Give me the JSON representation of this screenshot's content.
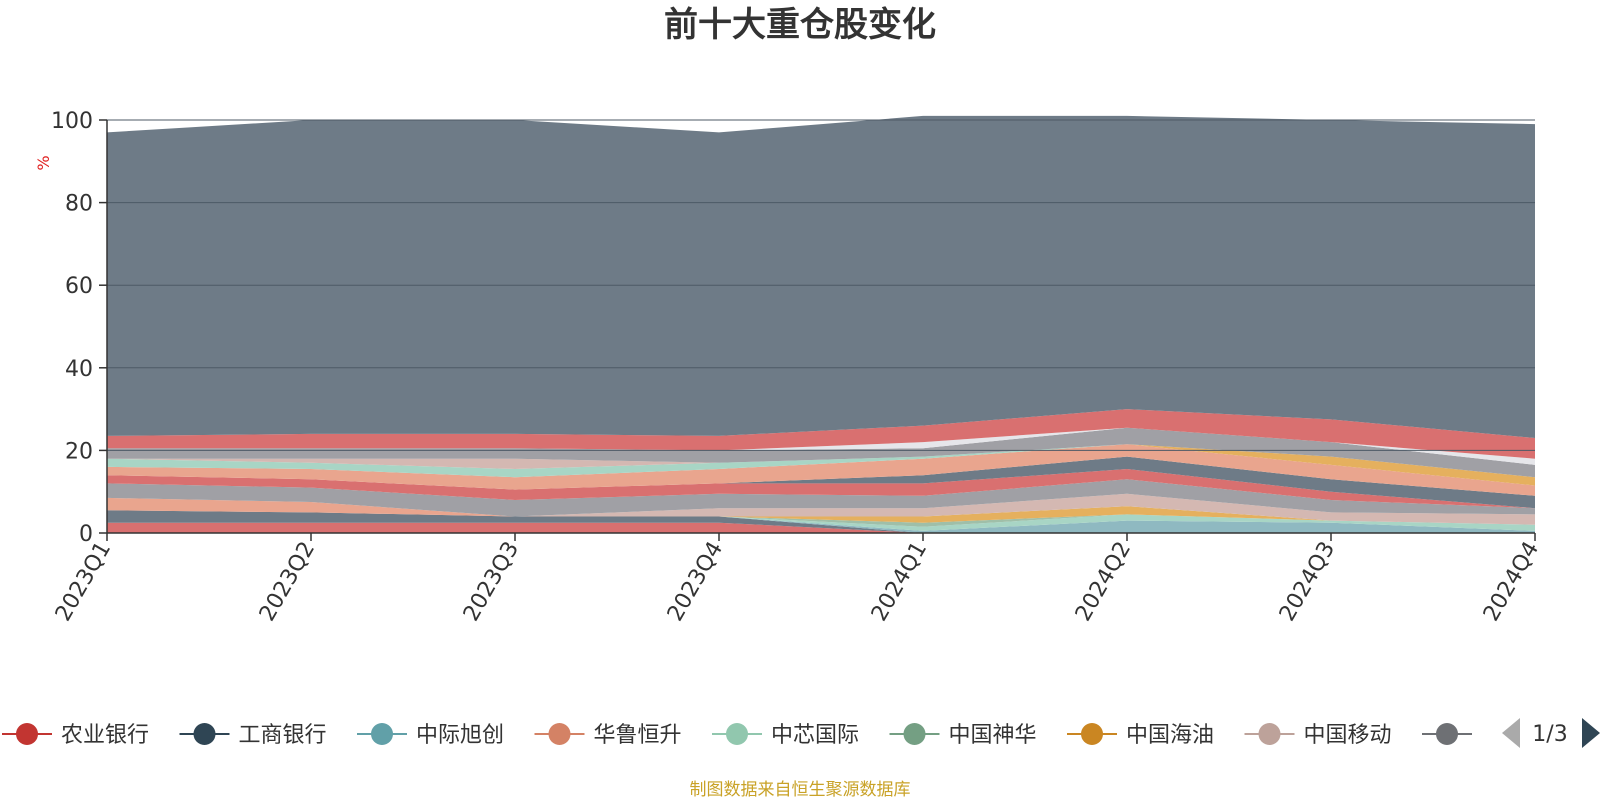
{
  "title": "前十大重仓股变化",
  "source_note": "制图数据来自恒生聚源数据库",
  "legend_page": "1/3",
  "chart_data": {
    "type": "area",
    "stacked": true,
    "title": "前十大重仓股变化",
    "ylabel": "%",
    "ylim": [
      0,
      100
    ],
    "yticks": [
      0,
      20,
      40,
      60,
      80,
      100
    ],
    "grid": true,
    "legend_position": "bottom",
    "categories": [
      "2023Q1",
      "2023Q2",
      "2023Q3",
      "2023Q4",
      "2024Q1",
      "2024Q2",
      "2024Q3",
      "2024Q4"
    ],
    "series": [
      {
        "name": "农业银行",
        "color": "#d97070",
        "values": [
          2.5,
          2.5,
          2.5,
          2.5,
          0,
          0,
          0,
          0
        ]
      },
      {
        "name": "工商银行",
        "color": "#6e7b87",
        "values": [
          3.0,
          2.5,
          1.5,
          1.5,
          0,
          0,
          0,
          0
        ]
      },
      {
        "name": "中际旭创",
        "color": "#8fb9c1",
        "values": [
          0,
          0,
          0,
          0,
          0.5,
          3.0,
          2.5,
          0.5
        ]
      },
      {
        "name": "华鲁恒升",
        "color": "#e9a58e",
        "values": [
          3.0,
          2.5,
          0,
          0,
          0,
          0,
          0,
          0
        ]
      },
      {
        "name": "中芯国际",
        "color": "#a8d5c5",
        "values": [
          0,
          0,
          0,
          0,
          1.0,
          1.5,
          0.5,
          1.5
        ]
      },
      {
        "name": "中国神华",
        "color": "#9fbfa9",
        "values": [
          0,
          0,
          0,
          0,
          1.0,
          0,
          0,
          0
        ]
      },
      {
        "name": "中国海油",
        "color": "#e5b05e",
        "values": [
          0,
          0,
          0,
          0,
          1.5,
          2.0,
          0,
          0
        ]
      },
      {
        "name": "中国移动",
        "color": "#d4b8b2",
        "values": [
          0,
          0,
          0,
          2.0,
          2.0,
          3.0,
          2.0,
          2.5
        ]
      },
      {
        "name": null,
        "color": "#a0a0a5",
        "values": [
          3.5,
          3.5,
          4.0,
          3.5,
          3.0,
          3.5,
          3.0,
          1.5
        ]
      },
      {
        "name": null,
        "color": "#d97070",
        "values": [
          2.0,
          2.0,
          2.5,
          2.5,
          3.0,
          2.5,
          2.0,
          0
        ]
      },
      {
        "name": null,
        "color": "#6e7b87",
        "values": [
          0,
          0,
          0,
          0,
          2.0,
          3.0,
          3.0,
          3.0
        ]
      },
      {
        "name": null,
        "color": "#e9a58e",
        "values": [
          2.0,
          2.5,
          3.0,
          3.5,
          4.0,
          3.0,
          3.5,
          2.5
        ]
      },
      {
        "name": null,
        "color": "#a8d5c5",
        "values": [
          2.0,
          1.5,
          2.0,
          1.5,
          0.5,
          0,
          0,
          0
        ]
      },
      {
        "name": null,
        "color": "#e5b05e",
        "values": [
          0,
          0,
          0,
          0,
          0,
          0,
          2.0,
          2.0
        ]
      },
      {
        "name": null,
        "color": "#d4b8b2",
        "values": [
          0,
          1.0,
          2.5,
          0,
          0,
          0,
          0,
          0
        ]
      },
      {
        "name": null,
        "color": "#a0a0a5",
        "values": [
          2.5,
          2.5,
          2.5,
          3.0,
          2.0,
          4.0,
          3.5,
          3.0
        ]
      },
      {
        "name": null,
        "color": "#e6e6ea",
        "values": [
          0,
          0,
          0,
          0,
          1.5,
          0,
          0,
          1.5
        ]
      },
      {
        "name": null,
        "color": "#d97070",
        "values": [
          3.0,
          3.5,
          3.5,
          3.5,
          4.0,
          4.5,
          5.5,
          5.0
        ]
      },
      {
        "name": null,
        "color": "#6e7b87",
        "values": [
          73.5,
          76.0,
          76.0,
          73.5,
          75.0,
          71.0,
          72.5,
          76.0
        ]
      }
    ]
  },
  "legend": {
    "items": [
      {
        "label": "农业银行",
        "color": "#c23531"
      },
      {
        "label": "工商银行",
        "color": "#2f4554"
      },
      {
        "label": "中际旭创",
        "color": "#61a0a8"
      },
      {
        "label": "华鲁恒升",
        "color": "#d48265"
      },
      {
        "label": "中芯国际",
        "color": "#91c7ae"
      },
      {
        "label": "中国神华",
        "color": "#749f83"
      },
      {
        "label": "中国海油",
        "color": "#ca8622"
      },
      {
        "label": "中国移动",
        "color": "#bda29a"
      }
    ]
  },
  "colors": {
    "axis": "#333333",
    "grid": "#4d5a66",
    "pager_active": "#2f4554",
    "pager_inactive": "#aaaaaa"
  }
}
